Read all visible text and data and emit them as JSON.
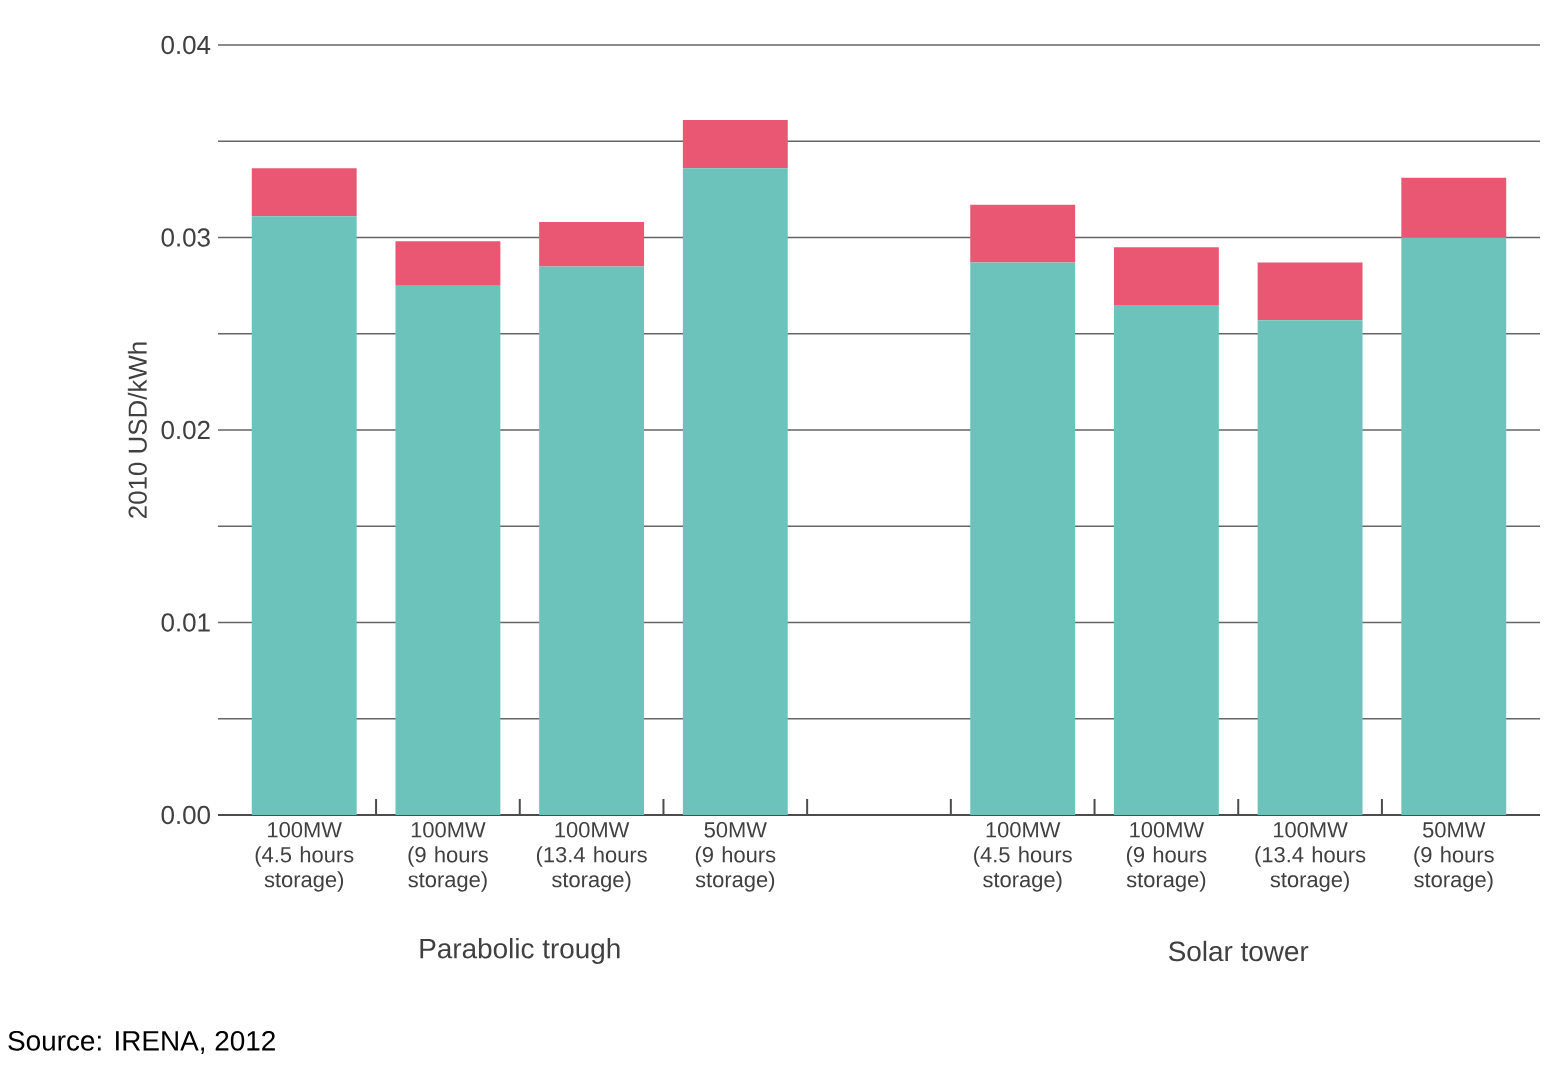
{
  "chart_data": {
    "type": "bar",
    "stacked": true,
    "ylabel": "2010 USD/kWh",
    "categories": [
      "100MW (4.5 hours storage)",
      "100MW (9 hours storage)",
      "100MW (13.4 hours storage)",
      "50MW (9 hours storage)",
      null,
      "100MW (4.5 hours storage)",
      "100MW (9 hours storage)",
      "100MW (13.4 hours storage)",
      "50MW (9 hours storage)"
    ],
    "series": [
      {
        "color": "#6cc3bc",
        "values": [
          0.0311,
          0.0275,
          0.0285,
          0.0336,
          null,
          0.0287,
          0.0265,
          0.0257,
          0.03
        ]
      },
      {
        "color": "#e95773",
        "values": [
          0.0025,
          0.0023,
          0.0023,
          0.0025,
          null,
          0.003,
          0.003,
          0.003,
          0.0031
        ]
      }
    ],
    "ylim": [
      0,
      0.04
    ],
    "yticks": [
      {
        "value": 0,
        "label": "0.00"
      },
      {
        "value": 0.005,
        "label": null
      },
      0.01,
      {
        "value": 0.015,
        "label": null
      },
      0.02,
      {
        "value": 0.025,
        "label": null
      },
      0.03,
      {
        "value": 0.035,
        "label": null
      },
      0.04
    ],
    "grid": "y",
    "annotations": [
      "Parabolic trough",
      "Solar tower",
      "Source: IRENA, 2012"
    ]
  }
}
